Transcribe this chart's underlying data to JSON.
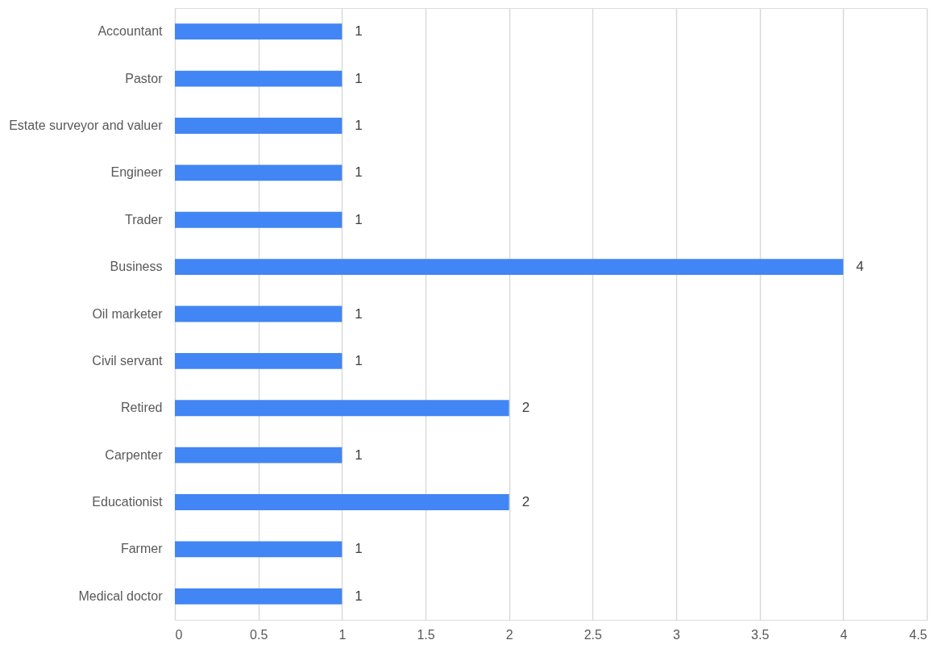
{
  "chart_data": {
    "type": "bar",
    "orientation": "horizontal",
    "categories": [
      "Accountant",
      "Pastor",
      "Estate surveyor and valuer",
      "Engineer",
      "Trader",
      "Business",
      "Oil marketer",
      "Civil servant",
      "Retired",
      "Carpenter",
      "Educationist",
      "Farmer",
      "Medical doctor"
    ],
    "values": [
      1,
      1,
      1,
      1,
      1,
      4,
      1,
      1,
      2,
      1,
      2,
      1,
      1
    ],
    "color": "#4285f4",
    "xlim": [
      0,
      4.5
    ],
    "xticks": [
      0,
      0.5,
      1,
      1.5,
      2,
      2.5,
      3,
      3.5,
      4,
      4.5
    ],
    "grid": "x",
    "data_labels": true
  }
}
